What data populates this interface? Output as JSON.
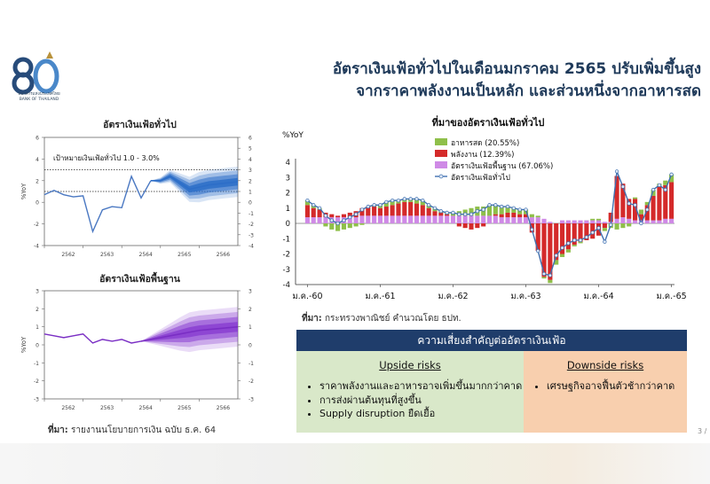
{
  "header": {
    "title_line1": "อัตราเงินเฟ้อทั่วไปในเดือนมกราคม 2565 ปรับเพิ่มขึ้นสูง",
    "title_line2": "จากราคาพลังงานเป็นหลัก และส่วนหนึ่งจากอาหารสด",
    "logo_text_th": "ธนาคารแห่งประเทศไทย",
    "logo_text_en": "BANK OF THAILAND",
    "logo_number": "80"
  },
  "left_charts": {
    "headline_title": "อัตราเงินเฟ้อทั่วไป",
    "core_title": "อัตราเงินเฟ้อพื้นฐาน",
    "target_label": "เป้าหมายเงินเฟ้อทั่วไป 1.0 - 3.0%",
    "ylabel": "%YoY",
    "source_label": "ที่มา:",
    "source_text": " รายงานนโยบายการเงิน ฉบับ ธ.ค. 64"
  },
  "right_chart": {
    "source_label": "ที่มา:",
    "source_text": " กระทรวงพาณิชย์ คำนวณโดย ธปท."
  },
  "risks": {
    "header": "ความเสี่ยงสำคัญต่ออัตราเงินเฟ้อ",
    "upside_title": "Upside risks",
    "upside_items": [
      "ราคาพลังงานและอาหารอาจเพิ่มขึ้นมากกว่าคาด",
      "การส่งผ่านต้นทุนที่สูงขึ้น",
      "Supply disruption ยืดเยื้อ"
    ],
    "downside_title": "Downside risks",
    "downside_items": [
      "เศรษฐกิจอาจฟื้นตัวช้ากว่าคาด"
    ]
  },
  "page_number": "3 /",
  "colors": {
    "navy": "#1f3d6b",
    "fresh_food": "#8fbf4a",
    "energy": "#d42a2a",
    "core": "#cf8ae6",
    "headline_line": "#4a78c2",
    "fan_blue": "#2d6ec8",
    "fan_purple": "#8a3fd1"
  },
  "chart_data": [
    {
      "type": "line",
      "title": "อัตราเงินเฟ้อทั่วไป",
      "ylabel": "%YoY",
      "ylim": [
        -4,
        6
      ],
      "yticks": [
        -4,
        -2,
        0,
        2,
        4,
        6
      ],
      "yticks_right": [
        -4,
        -3,
        -2,
        -1,
        0,
        1,
        2,
        3,
        4,
        5,
        6
      ],
      "x_ticks": [
        "2562",
        "2563",
        "2564",
        "2565",
        "2566"
      ],
      "target_band": [
        1.0,
        3.0
      ],
      "series": [
        {
          "kind": "actual",
          "x": [
            2562.0,
            2562.25,
            2562.5,
            2562.75,
            2563.0,
            2563.25,
            2563.5,
            2563.75,
            2564.0,
            2564.25,
            2564.5,
            2564.75
          ],
          "values": [
            0.7,
            1.1,
            0.7,
            0.5,
            0.6,
            -2.7,
            -0.7,
            -0.4,
            -0.5,
            2.4,
            0.4,
            2.0
          ]
        },
        {
          "kind": "forecast",
          "x": [
            2564.75,
            2565.0,
            2565.25,
            2565.5,
            2565.75,
            2566.0,
            2566.25,
            2566.5,
            2566.75,
            2567.0
          ],
          "values": [
            2.0,
            2.0,
            2.4,
            1.8,
            1.2,
            1.4,
            1.6,
            1.7,
            1.8,
            1.9
          ]
        }
      ]
    },
    {
      "type": "line",
      "title": "อัตราเงินเฟ้อพื้นฐาน",
      "ylabel": "%YoY",
      "ylim": [
        -3,
        3
      ],
      "yticks": [
        -3,
        -2,
        -1,
        0,
        1,
        2,
        3
      ],
      "x_ticks": [
        "2562",
        "2563",
        "2564",
        "2565",
        "2566"
      ],
      "series": [
        {
          "kind": "actual",
          "x": [
            2562.0,
            2562.25,
            2562.5,
            2562.75,
            2563.0,
            2563.25,
            2563.5,
            2563.75,
            2564.0,
            2564.25,
            2564.5
          ],
          "values": [
            0.6,
            0.5,
            0.4,
            0.5,
            0.6,
            0.1,
            0.3,
            0.2,
            0.3,
            0.1,
            0.2
          ]
        },
        {
          "kind": "forecast",
          "x": [
            2564.5,
            2564.75,
            2565.0,
            2565.25,
            2565.5,
            2565.75,
            2566.0,
            2566.25,
            2566.5,
            2566.75,
            2567.0
          ],
          "values": [
            0.2,
            0.3,
            0.4,
            0.5,
            0.6,
            0.7,
            0.8,
            0.85,
            0.9,
            0.95,
            1.0
          ]
        }
      ]
    },
    {
      "type": "bar",
      "title": "ที่มาของอัตราเงินเฟ้อทั่วไป",
      "ylabel": "%YoY",
      "ylim": [
        -4,
        4
      ],
      "yticks": [
        -4,
        -3,
        -2,
        -1,
        0,
        1,
        2,
        3,
        4
      ],
      "x_ticks": [
        "ม.ค.-60",
        "ม.ค.-61",
        "ม.ค.-62",
        "ม.ค.-63",
        "ม.ค.-64",
        "ม.ค.-65"
      ],
      "series": [
        {
          "name": "อาหารสด (20.55%)",
          "values": [
            0.3,
            0.2,
            0.1,
            -0.2,
            -0.4,
            -0.5,
            -0.4,
            -0.3,
            -0.2,
            -0.1,
            0.0,
            0.1,
            0.2,
            0.3,
            0.3,
            0.2,
            0.2,
            0.2,
            0.3,
            0.3,
            0.2,
            0.2,
            0.1,
            0.1,
            0.2,
            0.3,
            0.4,
            0.5,
            0.6,
            0.6,
            0.7,
            0.6,
            0.5,
            0.4,
            0.3,
            0.3,
            0.3,
            0.2,
            0.1,
            -0.1,
            -0.2,
            -0.3,
            -0.2,
            -0.2,
            -0.1,
            -0.1,
            0.0,
            0.1,
            0.1,
            -0.2,
            -0.3,
            -0.4,
            -0.3,
            -0.2,
            0.1,
            0.3,
            0.2,
            0.4,
            0.2,
            0.3,
            0.5
          ]
        },
        {
          "name": "พลังงาน (12.39%)",
          "values": [
            0.8,
            0.6,
            0.5,
            0.3,
            0.2,
            0.1,
            0.2,
            0.3,
            0.4,
            0.5,
            0.6,
            0.6,
            0.5,
            0.6,
            0.7,
            0.8,
            0.9,
            0.9,
            0.8,
            0.7,
            0.5,
            0.3,
            0.2,
            0.1,
            0.0,
            -0.2,
            -0.3,
            -0.4,
            -0.3,
            -0.2,
            0.0,
            0.1,
            0.2,
            0.3,
            0.3,
            0.2,
            0.2,
            -0.6,
            -1.8,
            -3.5,
            -3.7,
            -2.4,
            -2.0,
            -1.7,
            -1.4,
            -1.2,
            -1.1,
            -1.0,
            -0.8,
            -0.3,
            0.6,
            2.8,
            2.2,
            1.3,
            1.4,
            0.4,
            1.0,
            1.6,
            2.2,
            2.2,
            2.4
          ]
        },
        {
          "name": "อัตราเงินเฟ้อพื้นฐาน (67.06%)",
          "values": [
            0.4,
            0.4,
            0.4,
            0.4,
            0.4,
            0.4,
            0.4,
            0.4,
            0.4,
            0.5,
            0.5,
            0.5,
            0.5,
            0.5,
            0.5,
            0.5,
            0.5,
            0.5,
            0.5,
            0.5,
            0.5,
            0.5,
            0.5,
            0.5,
            0.5,
            0.5,
            0.5,
            0.5,
            0.5,
            0.5,
            0.5,
            0.5,
            0.4,
            0.4,
            0.4,
            0.4,
            0.4,
            0.4,
            0.4,
            0.3,
            0.1,
            0.0,
            0.2,
            0.2,
            0.2,
            0.2,
            0.2,
            0.2,
            0.2,
            0.1,
            0.1,
            0.3,
            0.4,
            0.3,
            0.2,
            0.2,
            0.2,
            0.2,
            0.2,
            0.3,
            0.3
          ]
        },
        {
          "name": "อัตราเงินเฟ้อทั่วไป",
          "type": "line",
          "values": [
            1.5,
            1.2,
            1.0,
            0.5,
            0.2,
            0.0,
            0.2,
            0.4,
            0.6,
            0.9,
            1.1,
            1.2,
            1.2,
            1.4,
            1.5,
            1.5,
            1.6,
            1.6,
            1.6,
            1.5,
            1.2,
            1.0,
            0.8,
            0.7,
            0.7,
            0.6,
            0.6,
            0.6,
            0.8,
            0.9,
            1.2,
            1.2,
            1.1,
            1.1,
            1.0,
            0.9,
            0.9,
            -0.4,
            -1.8,
            -3.3,
            -3.4,
            -2.1,
            -1.6,
            -1.3,
            -1.1,
            -1.1,
            -0.9,
            -0.6,
            -0.3,
            -1.2,
            -0.1,
            3.4,
            2.4,
            1.3,
            1.2,
            0.0,
            0.9,
            2.2,
            2.5,
            2.2,
            3.2
          ]
        }
      ]
    }
  ]
}
